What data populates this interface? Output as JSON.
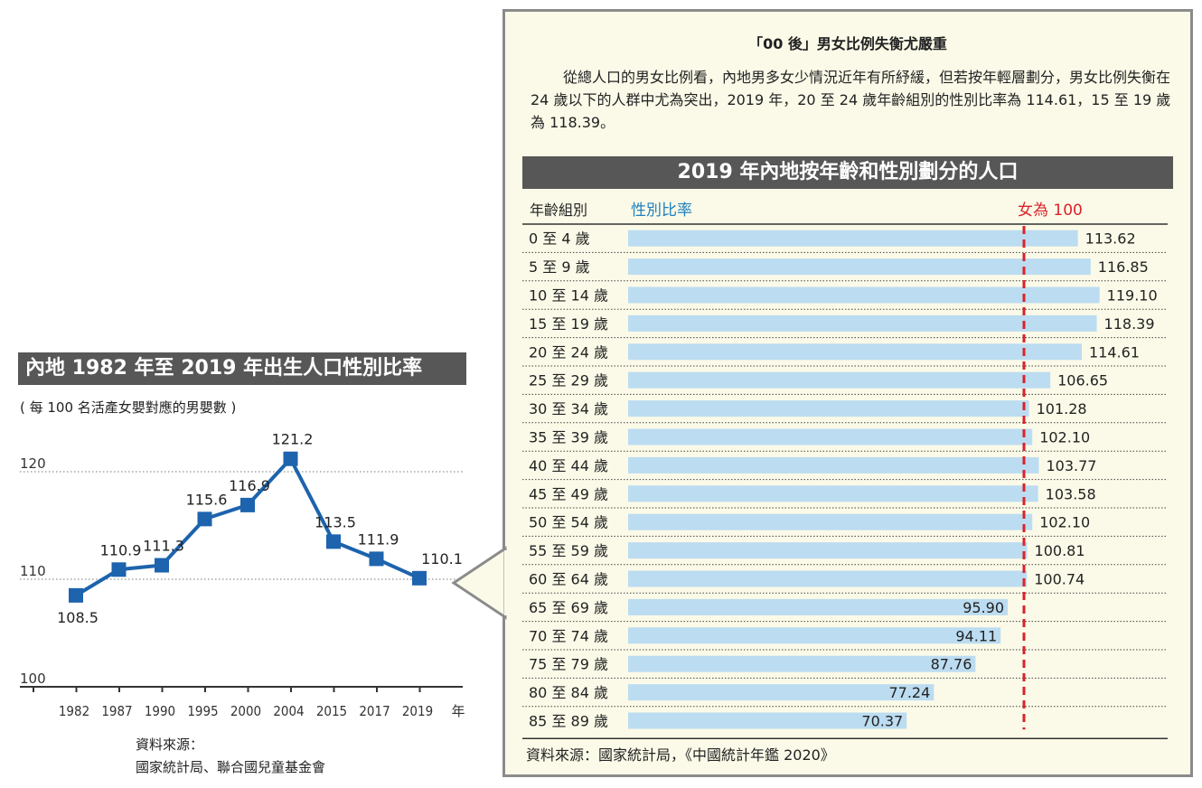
{
  "line_section": {
    "title": "內地 1982 年至 2019 年出生人口性別比率",
    "subtitle": "( 每 100 名活產女嬰對應的男嬰數 )",
    "source_label": "資料來源：",
    "source_text": "國家統計局、聯合國兒童基金會"
  },
  "panel": {
    "heading": "「00 後」男女比例失衡尤嚴重",
    "body": "從總人口的男女比例看，內地男多女少情況近年有所紓緩，但若按年輕層劃分，男女比例失衡在 24 歲以下的人群中尤為突出，2019 年，20 至 24 歲年齡組別的性別比率為 114.61，15 至 19 歲為 118.39。"
  },
  "bar_section": {
    "title": "2019 年內地按年齡和性別劃分的人口",
    "source": "資料來源：國家統計局，《中國統計年鑑 2020》"
  },
  "colors": {
    "line": "#1d63ad",
    "bar": "#bcdcf1",
    "reference": "#d9232a",
    "header_blue": "#1d7fc0"
  },
  "chart_data": [
    {
      "type": "line",
      "title": "內地 1982 年至 2019 年出生人口性別比率",
      "subtitle": "( 每 100 名活產女嬰對應的男嬰數 )",
      "xlabel": "年",
      "ylabel": "",
      "categories": [
        "1982",
        "1987",
        "1990",
        "1995",
        "2000",
        "2004",
        "2015",
        "2017",
        "2019"
      ],
      "values": [
        108.5,
        110.9,
        111.3,
        115.6,
        116.9,
        121.2,
        113.5,
        111.9,
        110.1
      ],
      "yticks": [
        "100",
        "110",
        "120"
      ],
      "ylim": [
        100,
        120
      ],
      "grid": "dotted horizontal lines at 110 and 120",
      "marker": "square",
      "legend": "none"
    },
    {
      "type": "bar",
      "orientation": "horizontal",
      "title": "2019 年內地按年齡和性別劃分的人口",
      "category_header": "年齡組別",
      "value_header": "性別比率",
      "reference_label": "女為 100",
      "reference_value": 100,
      "categories": [
        "0 至 4 歲",
        "5 至 9 歲",
        "10 至 14 歲",
        "15 至 19 歲",
        "20 至 24 歲",
        "25 至 29 歲",
        "30 至 34 歲",
        "35 至 39 歲",
        "40 至 44 歲",
        "45 至 49 歲",
        "50 至 54 歲",
        "55 至 59 歲",
        "60 至 64 歲",
        "65 至 69 歲",
        "70 至 74 歲",
        "75 至 79 歲",
        "80 至 84 歲",
        "85 至 89 歲"
      ],
      "labels": [
        "113.62",
        "116.85",
        "119.10",
        "118.39",
        "114.61",
        "106.65",
        "101.28",
        "102.10",
        "103.77",
        "103.58",
        "102.10",
        "100.81",
        "100.74",
        "95.90",
        "94.11",
        "87.76",
        "77.24",
        "70.37"
      ],
      "values": [
        113.62,
        116.85,
        119.1,
        118.39,
        114.61,
        106.65,
        101.28,
        102.1,
        103.77,
        103.58,
        102.1,
        100.81,
        100.74,
        95.9,
        94.11,
        87.76,
        77.24,
        70.37
      ],
      "legend": "none"
    }
  ]
}
